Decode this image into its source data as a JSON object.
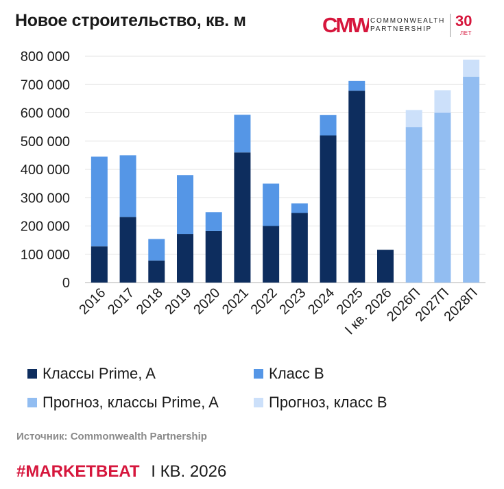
{
  "header": {
    "title": "Новое строительство, кв. м"
  },
  "logo": {
    "mark": "CMWP",
    "line1": "COMMONWEALTH",
    "line2": "PARTNERSHIP",
    "years": "30",
    "years_label": "ЛЕТ",
    "color": "#d6163c"
  },
  "chart_data": {
    "type": "bar",
    "stacked": true,
    "categories": [
      "2016",
      "2017",
      "2018",
      "2019",
      "2020",
      "2021",
      "2022",
      "2023",
      "2024",
      "2025",
      "I кв. 2026",
      "2026П",
      "2027П",
      "2028П"
    ],
    "series": [
      {
        "name": "Классы Prime, A",
        "color": "#0d2d5e",
        "values": [
          128000,
          232000,
          78000,
          172000,
          182000,
          460000,
          200000,
          246000,
          520000,
          678000,
          116000,
          0,
          0,
          0
        ]
      },
      {
        "name": "Класс B",
        "color": "#5596e6",
        "values": [
          317000,
          218000,
          76000,
          208000,
          67000,
          133000,
          150000,
          34000,
          72000,
          35000,
          0,
          0,
          0,
          0
        ]
      },
      {
        "name": "Прогноз, классы Prime, A",
        "color": "#92bdf1",
        "values": [
          0,
          0,
          0,
          0,
          0,
          0,
          0,
          0,
          0,
          0,
          0,
          550000,
          600000,
          728000
        ]
      },
      {
        "name": "Прогноз, класс B",
        "color": "#cce0fa",
        "values": [
          0,
          0,
          0,
          0,
          0,
          0,
          0,
          0,
          0,
          0,
          0,
          60000,
          80000,
          60000
        ]
      }
    ],
    "ylim": [
      0,
      800000
    ],
    "y_ticks": [
      "800 000",
      "700 000",
      "600 000",
      "500 000",
      "400 000",
      "300 000",
      "200 000",
      "100 000",
      "0"
    ],
    "y_tick_values": [
      800000,
      700000,
      600000,
      500000,
      400000,
      300000,
      200000,
      100000,
      0
    ],
    "grid": true,
    "legend_position": "bottom"
  },
  "legend": {
    "items": [
      {
        "label": "Классы Prime, A",
        "color": "#0d2d5e"
      },
      {
        "label": "Класс B",
        "color": "#5596e6"
      },
      {
        "label": "Прогноз, классы Prime, A",
        "color": "#92bdf1"
      },
      {
        "label": "Прогноз, класс B",
        "color": "#cce0fa"
      }
    ]
  },
  "source": "Источник: Commonwealth Partnership",
  "footer": {
    "brand": "#MARKETBEAT",
    "period": "I КВ. 2026"
  }
}
